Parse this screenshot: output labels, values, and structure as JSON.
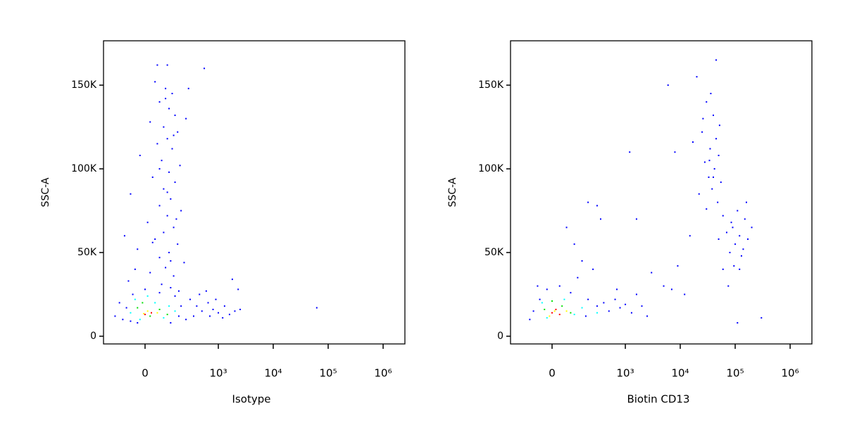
{
  "chart_data": [
    {
      "type": "scatter",
      "xlabel": "Isotype",
      "ylabel": "SSC-A",
      "xscale": "biexponential",
      "xlim": [
        -257,
        2490000
      ],
      "ylim": [
        -4600,
        176500
      ],
      "xticks": [
        0,
        {
          "value": 1000,
          "label": "10³"
        },
        {
          "value": 10000,
          "label": "10⁴"
        },
        {
          "value": 100000,
          "label": "10⁵"
        },
        {
          "value": 1000000,
          "label": "10⁶"
        }
      ],
      "yticks": [
        0,
        {
          "value": 50000,
          "label": "50K"
        },
        {
          "value": 100000,
          "label": "100K"
        },
        {
          "value": 150000,
          "label": "150K"
        }
      ],
      "series": [
        {
          "color": "#0000ff",
          "x": [
            40,
            90,
            130,
            60,
            110,
            150,
            20,
            80,
            170,
            100,
            50,
            130,
            -20,
            70,
            190,
            110,
            30,
            150,
            80,
            -60,
            120,
            60,
            200,
            100,
            10,
            140,
            80,
            40,
            170,
            -30,
            110,
            60,
            230,
            90,
            20,
            140,
            -70,
            70,
            120,
            180,
            90,
            140,
            60,
            100,
            160,
            30,
            120,
            -40,
            100,
            50,
            552,
            280,
            250,
            -90,
            300,
            400,
            500,
            650,
            800,
            1000,
            1300,
            1600,
            2000,
            2500,
            350,
            700,
            900,
            1200,
            2300,
            1800,
            600,
            450,
            62000,
            -150,
            -120,
            -100,
            -60,
            250,
            -50,
            0,
            60,
            150,
            -80,
            200,
            180,
            -30,
            120
          ],
          "values": [
            152000,
            148000,
            145000,
            140000,
            136000,
            132000,
            128000,
            125000,
            122000,
            118000,
            115000,
            112000,
            108000,
            105000,
            102000,
            98000,
            95000,
            92000,
            88000,
            85000,
            82000,
            78000,
            75000,
            72000,
            68000,
            65000,
            62000,
            58000,
            55000,
            52000,
            50000,
            47000,
            44000,
            41000,
            38000,
            36000,
            33000,
            31000,
            29000,
            27000,
            142000,
            120000,
            100000,
            86000,
            70000,
            56000,
            45000,
            40000,
            162000,
            162000,
            160000,
            148000,
            130000,
            60000,
            22000,
            18000,
            15000,
            20000,
            16000,
            14000,
            18000,
            13000,
            15000,
            16000,
            12000,
            12000,
            22000,
            11000,
            28000,
            34000,
            27000,
            25000,
            17000,
            12000,
            20000,
            10000,
            9000,
            10000,
            25000,
            28000,
            26000,
            24000,
            17000,
            18000,
            12000,
            8000,
            8000
          ]
        },
        {
          "color": "#00ffff",
          "x": [
            -40,
            40,
            110,
            -20,
            80,
            150,
            10,
            -60
          ],
          "values": [
            22000,
            20000,
            18000,
            10000,
            11000,
            15000,
            24000,
            14000
          ]
        },
        {
          "color": "#00e000",
          "x": [
            -30,
            60,
            20,
            100,
            -10
          ],
          "values": [
            17000,
            16000,
            12000,
            13000,
            20000
          ]
        },
        {
          "color": "#ffff00",
          "x": [
            10,
            50,
            -5
          ],
          "values": [
            15000,
            14000,
            13500
          ]
        },
        {
          "color": "#ff0000",
          "x": [
            0,
            25
          ],
          "values": [
            13000,
            14000
          ]
        }
      ]
    },
    {
      "type": "scatter",
      "xlabel": "Biotin CD13",
      "ylabel": "SSC-A",
      "xscale": "biexponential",
      "xlim": [
        -257,
        2490000
      ],
      "ylim": [
        -4600,
        176500
      ],
      "xticks": [
        0,
        {
          "value": 1000,
          "label": "10³"
        },
        {
          "value": 10000,
          "label": "10⁴"
        },
        {
          "value": 100000,
          "label": "10⁵"
        },
        {
          "value": 1000000,
          "label": "10⁶"
        }
      ],
      "yticks": [
        0,
        {
          "value": 50000,
          "label": "50K"
        },
        {
          "value": 100000,
          "label": "100K"
        },
        {
          "value": 150000,
          "label": "150K"
        }
      ],
      "series": [
        {
          "color": "#0000ff",
          "x": [
            -80,
            -50,
            -20,
            30,
            80,
            120,
            200,
            300,
            400,
            500,
            650,
            800,
            1000,
            1300,
            1600,
            2000,
            2500,
            150,
            100,
            250,
            200,
            300,
            60,
            350,
            1600,
            3000,
            5000,
            7000,
            9000,
            12000,
            15000,
            8000,
            6000,
            1200,
            -100,
            -60,
            180,
            700,
            30000,
            40000,
            25000,
            45000,
            35000,
            50000,
            28000,
            42000,
            33000,
            55000,
            38000,
            22000,
            48000,
            30000,
            60000,
            17000,
            20000,
            45000,
            36000,
            26000,
            52000,
            40000,
            34000,
            90000,
            120000,
            150000,
            100000,
            80000,
            130000,
            110000,
            170000,
            70000,
            95000,
            140000,
            200000,
            85000,
            120000,
            75000,
            110000,
            300000,
            60000,
            160000,
            50000
          ],
          "values": [
            15000,
            22000,
            28000,
            30000,
            26000,
            35000,
            22000,
            18000,
            20000,
            15000,
            22000,
            17000,
            19000,
            14000,
            25000,
            18000,
            12000,
            45000,
            55000,
            40000,
            80000,
            78000,
            65000,
            70000,
            70000,
            38000,
            30000,
            28000,
            42000,
            25000,
            60000,
            110000,
            150000,
            110000,
            10000,
            30000,
            12000,
            28000,
            140000,
            132000,
            122000,
            118000,
            112000,
            108000,
            104000,
            100000,
            95000,
            92000,
            88000,
            85000,
            80000,
            76000,
            72000,
            116000,
            155000,
            165000,
            145000,
            130000,
            126000,
            95000,
            105000,
            65000,
            60000,
            70000,
            55000,
            50000,
            48000,
            75000,
            58000,
            62000,
            42000,
            52000,
            65000,
            68000,
            40000,
            30000,
            8000,
            11000,
            40000,
            80000,
            58000
          ]
        },
        {
          "color": "#00ffff",
          "x": [
            -40,
            50,
            150,
            -20,
            100,
            300
          ],
          "values": [
            20000,
            22000,
            17000,
            11000,
            13000,
            14000
          ]
        },
        {
          "color": "#00e000",
          "x": [
            -30,
            40,
            80,
            0
          ],
          "values": [
            16000,
            18000,
            14000,
            21000
          ]
        },
        {
          "color": "#ffff00",
          "x": [
            10,
            60,
            -10
          ],
          "values": [
            15000,
            15000,
            12000
          ]
        },
        {
          "color": "#ff0000",
          "x": [
            0,
            30,
            15
          ],
          "values": [
            14000,
            13000,
            16000
          ]
        }
      ]
    }
  ]
}
